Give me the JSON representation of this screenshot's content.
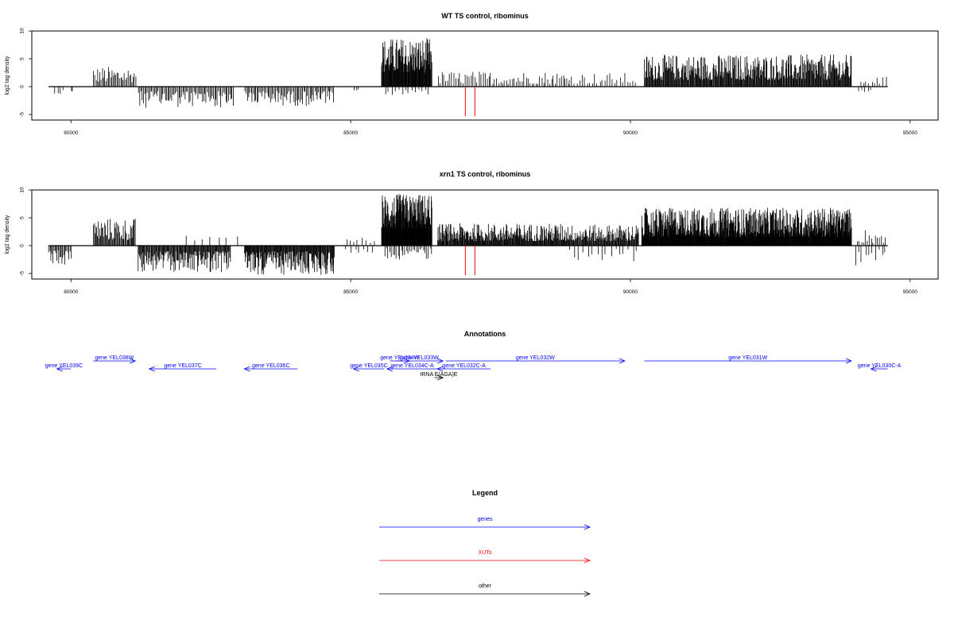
{
  "colors": {
    "genes": "#0000ff",
    "xuts": "#ff0000",
    "other": "#000000",
    "axis": "#000000"
  },
  "chart_data": [
    {
      "type": "bar",
      "title": "WT TS control, ribominus",
      "ylabel": "log2 tag density",
      "xlim": [
        79300,
        95500
      ],
      "ylim": [
        -6,
        10
      ],
      "xticks": [
        "80000",
        "85000",
        "90000",
        "95000"
      ],
      "xtick_values": [
        80000,
        85000,
        90000,
        95000
      ],
      "yticks": [
        "-5",
        "0",
        "5",
        "10"
      ],
      "ytick_values": [
        -5,
        0,
        5,
        10
      ],
      "baseline": {
        "x": [
          79600,
          94600
        ],
        "y": 0
      },
      "grid": false,
      "segments": [
        {
          "x": [
            79700,
            79850
          ],
          "sign": -1,
          "min": 0.5,
          "max": 1.8,
          "step": 45
        },
        {
          "x": [
            80000,
            80020
          ],
          "sign": -1,
          "min": 0.5,
          "max": 1.0,
          "step": 20
        },
        {
          "x": [
            80400,
            81150
          ],
          "sign": 1,
          "min": 0.8,
          "max": 3.6,
          "step": 22
        },
        {
          "x": [
            81200,
            82900
          ],
          "sign": -1,
          "min": 0.8,
          "max": 3.8,
          "step": 22
        },
        {
          "x": [
            83100,
            84700
          ],
          "sign": -1,
          "min": 0.8,
          "max": 3.5,
          "step": 22
        },
        {
          "x": [
            85050,
            85150
          ],
          "sign": -1,
          "min": 0.5,
          "max": 1.8,
          "step": 40
        },
        {
          "x": [
            85550,
            86450
          ],
          "sign": 1,
          "min": 2.5,
          "max": 8.8,
          "step": 8
        },
        {
          "x": [
            85600,
            86400
          ],
          "sign": -1,
          "min": 0.5,
          "max": 1.5,
          "step": 60
        },
        {
          "x": [
            86550,
            88900
          ],
          "sign": 1,
          "min": 0.5,
          "max": 2.8,
          "step": 35
        },
        {
          "x": [
            88900,
            90100
          ],
          "sign": 1,
          "min": 0.5,
          "max": 2.5,
          "step": 45
        },
        {
          "x": [
            90250,
            93950
          ],
          "sign": 1,
          "min": 1.2,
          "max": 5.8,
          "step": 11
        },
        {
          "x": [
            94100,
            94550
          ],
          "sign": 1,
          "min": 0.5,
          "max": 1.8,
          "step": 50
        },
        {
          "x": [
            94050,
            94300
          ],
          "sign": -1,
          "min": 0.5,
          "max": 2.0,
          "step": 60
        }
      ],
      "xuts": [
        {
          "x": 87050,
          "y": -5.3
        },
        {
          "x": 87220,
          "y": -5.3
        }
      ]
    },
    {
      "type": "bar",
      "title": "xrn1 TS control, ribominus",
      "ylabel": "log2 tag density",
      "xlim": [
        79300,
        95500
      ],
      "ylim": [
        -6,
        10
      ],
      "xticks": [
        "80000",
        "85000",
        "90000",
        "95000"
      ],
      "xtick_values": [
        80000,
        85000,
        90000,
        95000
      ],
      "yticks": [
        "-5",
        "0",
        "5",
        "10"
      ],
      "ytick_values": [
        -5,
        0,
        5,
        10
      ],
      "baseline": {
        "x": [
          79600,
          94600
        ],
        "y": 0
      },
      "grid": false,
      "segments": [
        {
          "x": [
            79600,
            80000
          ],
          "sign": -1,
          "min": 0.8,
          "max": 3.6,
          "step": 18
        },
        {
          "x": [
            80400,
            81150
          ],
          "sign": 1,
          "min": 1.0,
          "max": 5.0,
          "step": 14
        },
        {
          "x": [
            81200,
            82850
          ],
          "sign": -1,
          "min": 1.0,
          "max": 4.8,
          "step": 12
        },
        {
          "x": [
            82000,
            82900
          ],
          "sign": 1,
          "min": 0.5,
          "max": 2.0,
          "step": 150
        },
        {
          "x": [
            83100,
            84700
          ],
          "sign": -1,
          "min": 1.0,
          "max": 5.3,
          "step": 10
        },
        {
          "x": [
            84900,
            85400
          ],
          "sign": 1,
          "min": 0.5,
          "max": 1.5,
          "step": 70
        },
        {
          "x": [
            84900,
            85400
          ],
          "sign": -1,
          "min": 0.5,
          "max": 1.3,
          "step": 80
        },
        {
          "x": [
            85550,
            86450
          ],
          "sign": 1,
          "min": 3.0,
          "max": 9.3,
          "step": 6
        },
        {
          "x": [
            85600,
            86450
          ],
          "sign": -1,
          "min": 0.5,
          "max": 2.5,
          "step": 30
        },
        {
          "x": [
            86550,
            88900
          ],
          "sign": 1,
          "min": 0.8,
          "max": 4.0,
          "step": 10
        },
        {
          "x": [
            88900,
            90150
          ],
          "sign": 1,
          "min": 0.8,
          "max": 3.8,
          "step": 11
        },
        {
          "x": [
            88900,
            90100
          ],
          "sign": -1,
          "min": 0.5,
          "max": 2.8,
          "step": 80
        },
        {
          "x": [
            90200,
            93950
          ],
          "sign": 1,
          "min": 1.5,
          "max": 6.8,
          "step": 6
        },
        {
          "x": [
            94050,
            94550
          ],
          "sign": 1,
          "min": 0.5,
          "max": 3.0,
          "step": 35
        },
        {
          "x": [
            94000,
            94550
          ],
          "sign": -1,
          "min": 0.5,
          "max": 4.0,
          "step": 60
        }
      ],
      "xuts": [
        {
          "x": 87050,
          "y": -5.3
        },
        {
          "x": 87220,
          "y": -5.3
        }
      ]
    }
  ],
  "annotations": {
    "title": "Annotations",
    "genes": [
      {
        "label": "gene YEL039C",
        "start": 79750,
        "end": 80000,
        "strand": "-",
        "lane": 1
      },
      {
        "label": "gene YEL038W",
        "start": 80400,
        "end": 81150,
        "strand": "+",
        "lane": 0
      },
      {
        "label": "gene YEL037C",
        "start": 81400,
        "end": 82600,
        "strand": "-",
        "lane": 1
      },
      {
        "label": "gene YEL036C",
        "start": 83100,
        "end": 84050,
        "strand": "-",
        "lane": 1
      },
      {
        "label": "gene YEL035C",
        "start": 85050,
        "end": 85600,
        "strand": "-",
        "lane": 1
      },
      {
        "label": "gene YEL034W",
        "start": 85700,
        "end": 86050,
        "strand": "+",
        "lane": 0
      },
      {
        "label": "gene YEL033W",
        "start": 85800,
        "end": 86650,
        "strand": "+",
        "lane": 0
      },
      {
        "label": "gene YEL034C-A",
        "start": 85650,
        "end": 86550,
        "strand": "-",
        "lane": 1
      },
      {
        "label": "gene YEL032C-A",
        "start": 86550,
        "end": 87500,
        "strand": "-",
        "lane": 1
      },
      {
        "label": "gene YEL032W",
        "start": 86700,
        "end": 89900,
        "strand": "+",
        "lane": 0
      },
      {
        "label": "gene YEL031W",
        "start": 90250,
        "end": 93950,
        "strand": "+",
        "lane": 0
      },
      {
        "label": "gene YEL030C-A",
        "start": 94300,
        "end": 94600,
        "strand": "-",
        "lane": 1
      }
    ],
    "other": [
      {
        "label": "tRNA E(AGA)E",
        "start": 86500,
        "end": 86650,
        "strand": "+",
        "lane": 2
      }
    ]
  },
  "legend": {
    "title": "Legend",
    "items": [
      {
        "label": "genes",
        "color": "#0000ff"
      },
      {
        "label": "XUTs",
        "color": "#ff0000"
      },
      {
        "label": "other",
        "color": "#000000"
      }
    ]
  }
}
